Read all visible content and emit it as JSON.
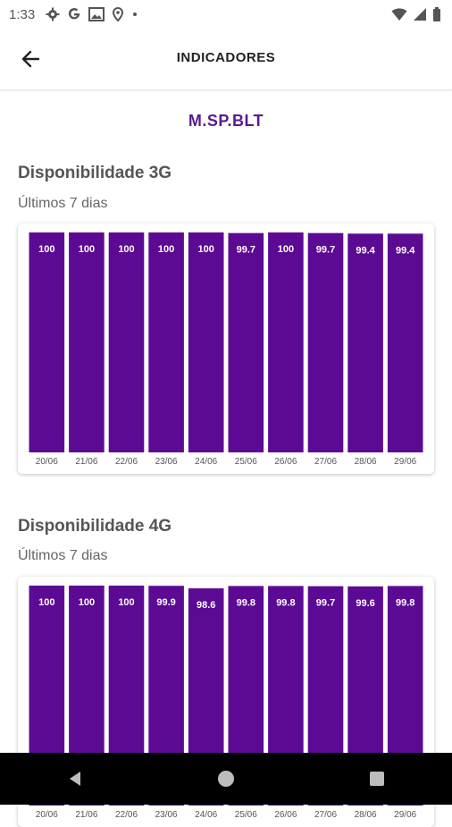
{
  "status_bar": {
    "time": "1:33",
    "left_icons": [
      "gear-icon",
      "google-g-icon",
      "image-icon",
      "location-pin-icon",
      "dot-icon"
    ],
    "right_icons": [
      "wifi-icon",
      "signal-icon",
      "battery-icon"
    ]
  },
  "app_bar": {
    "title": "INDICADORES",
    "back_icon": "arrow-left-icon"
  },
  "site": {
    "name": "M.SP.BLT",
    "color": "#5a1a8f"
  },
  "sections": [
    {
      "title": "Disponibilidade 3G",
      "subtitle": "Últimos 7 dias"
    },
    {
      "title": "Disponibilidade 4G",
      "subtitle": "Últimos 7 dias"
    }
  ],
  "colors": {
    "bar": "#5c0a93",
    "bar_label": "#ffffff",
    "axis_label": "#555555"
  },
  "chart_data": [
    {
      "type": "bar",
      "title": "Disponibilidade 3G",
      "categories": [
        "20/06",
        "21/06",
        "22/06",
        "23/06",
        "24/06",
        "25/06",
        "26/06",
        "27/06",
        "28/06",
        "29/06"
      ],
      "values": [
        100,
        100,
        100,
        100,
        100,
        99.7,
        100,
        99.7,
        99.4,
        99.4
      ],
      "value_labels": [
        "100",
        "100",
        "100",
        "100",
        "100",
        "99.7",
        "100",
        "99.7",
        "99.4",
        "99.4"
      ],
      "ylim": [
        0,
        100
      ],
      "grid": false,
      "legend": "none"
    },
    {
      "type": "bar",
      "title": "Disponibilidade 4G",
      "categories": [
        "20/06",
        "21/06",
        "22/06",
        "23/06",
        "24/06",
        "25/06",
        "26/06",
        "27/06",
        "28/06",
        "29/06"
      ],
      "values": [
        100,
        100,
        100,
        99.9,
        98.6,
        99.8,
        99.8,
        99.7,
        99.6,
        99.8
      ],
      "value_labels": [
        "100",
        "100",
        "100",
        "99.9",
        "98.6",
        "99.8",
        "99.8",
        "99.7",
        "99.6",
        "99.8"
      ],
      "ylim": [
        0,
        100
      ],
      "grid": false,
      "legend": "none"
    }
  ],
  "nav_bar": {
    "buttons": [
      "back-triangle-icon",
      "home-circle-icon",
      "recents-square-icon"
    ]
  }
}
